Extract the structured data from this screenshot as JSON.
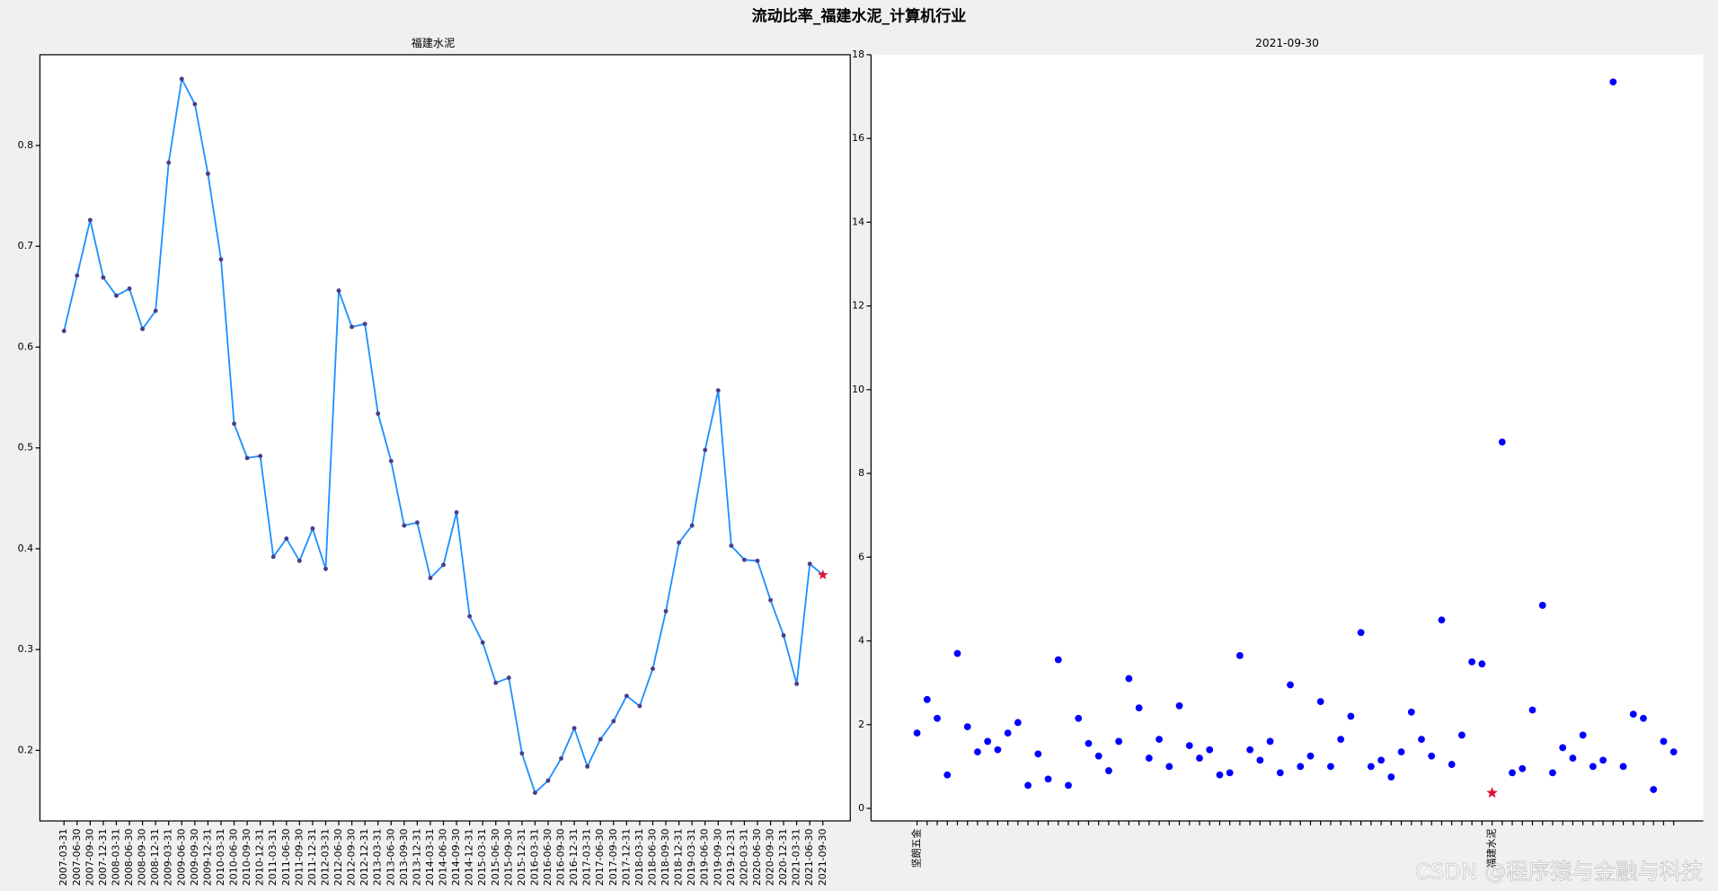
{
  "title": "流动比率_福建水泥_计算机行业",
  "watermark": "CSDN @程序猿与金融与科技",
  "chart_data": [
    {
      "type": "line",
      "title": "福建水泥",
      "categories": [
        "2007-03-31",
        "2007-06-30",
        "2007-09-30",
        "2007-12-31",
        "2008-03-31",
        "2008-06-30",
        "2008-09-30",
        "2008-12-31",
        "2009-03-31",
        "2009-06-30",
        "2009-09-30",
        "2009-12-31",
        "2010-03-31",
        "2010-06-30",
        "2010-09-30",
        "2010-12-31",
        "2011-03-31",
        "2011-06-30",
        "2011-09-30",
        "2011-12-31",
        "2012-03-31",
        "2012-06-30",
        "2012-09-30",
        "2012-12-31",
        "2013-03-31",
        "2013-06-30",
        "2013-09-30",
        "2013-12-31",
        "2014-03-31",
        "2014-06-30",
        "2014-09-30",
        "2014-12-31",
        "2015-03-31",
        "2015-06-30",
        "2015-09-30",
        "2015-12-31",
        "2016-03-31",
        "2016-06-30",
        "2016-09-30",
        "2016-12-31",
        "2017-03-31",
        "2017-06-30",
        "2017-09-30",
        "2017-12-31",
        "2018-03-31",
        "2018-06-30",
        "2018-09-30",
        "2018-12-31",
        "2019-03-31",
        "2019-06-30",
        "2019-09-30",
        "2019-12-31",
        "2020-03-31",
        "2020-06-30",
        "2020-09-30",
        "2020-12-31",
        "2021-03-31",
        "2021-06-30",
        "2021-09-30"
      ],
      "values": [
        0.616,
        0.671,
        0.726,
        0.669,
        0.651,
        0.658,
        0.618,
        0.636,
        0.783,
        0.866,
        0.841,
        0.772,
        0.687,
        0.524,
        0.49,
        0.492,
        0.392,
        0.41,
        0.388,
        0.42,
        0.38,
        0.656,
        0.62,
        0.623,
        0.534,
        0.487,
        0.423,
        0.426,
        0.371,
        0.384,
        0.436,
        0.333,
        0.307,
        0.267,
        0.272,
        0.197,
        0.158,
        0.17,
        0.192,
        0.222,
        0.184,
        0.211,
        0.229,
        0.254,
        0.244,
        0.281,
        0.338,
        0.406,
        0.423,
        0.498,
        0.557,
        0.403,
        0.389,
        0.388,
        0.349,
        0.314,
        0.266,
        0.385,
        0.374
      ],
      "color": "#1e90ff",
      "marker_color": "#483d8b",
      "highlight_color": "#dc143c",
      "ylim": [
        0.13,
        0.89
      ],
      "yticks": [
        0.2,
        0.3,
        0.4,
        0.5,
        0.6,
        0.7,
        0.8
      ]
    },
    {
      "type": "scatter",
      "title": "2021-09-30",
      "categories": [
        "坚朗五金",
        null,
        null,
        null,
        null,
        null,
        null,
        null,
        null,
        null,
        null,
        null,
        null,
        null,
        null,
        null,
        null,
        null,
        null,
        null,
        null,
        null,
        null,
        null,
        null,
        null,
        null,
        null,
        null,
        null,
        null,
        null,
        null,
        null,
        null,
        null,
        null,
        null,
        null,
        null,
        null,
        null,
        null,
        null,
        null,
        null,
        null,
        null,
        null,
        null,
        null,
        null,
        null,
        null,
        null,
        null,
        null,
        "福建水泥",
        null,
        null,
        null,
        null,
        null,
        null,
        null,
        null,
        null,
        null,
        null,
        null,
        null,
        null,
        null,
        null,
        null,
        null
      ],
      "values": [
        1.8,
        2.6,
        2.15,
        0.8,
        3.7,
        1.95,
        1.35,
        1.6,
        1.4,
        1.8,
        2.05,
        0.55,
        1.3,
        0.7,
        3.55,
        0.55,
        2.15,
        1.55,
        1.25,
        0.9,
        1.6,
        3.1,
        2.4,
        1.2,
        1.65,
        1.0,
        2.45,
        1.5,
        1.2,
        1.4,
        0.8,
        0.85,
        3.65,
        1.4,
        1.15,
        1.6,
        0.85,
        2.95,
        1.0,
        1.25,
        2.55,
        1.0,
        1.65,
        2.2,
        4.2,
        1.0,
        1.15,
        0.75,
        1.35,
        2.3,
        1.65,
        1.25,
        4.5,
        1.05,
        1.75,
        3.5,
        3.45,
        0.37,
        8.75,
        0.85,
        0.95,
        2.35,
        4.85,
        0.85,
        1.45,
        1.2,
        1.75,
        1.0,
        1.15,
        17.35,
        1.0,
        2.25,
        2.15,
        0.45,
        1.6,
        1.35
      ],
      "color": "#0000ff",
      "highlight_color": "#dc143c",
      "ylim": [
        -0.3,
        18
      ],
      "yticks": [
        0,
        2,
        4,
        6,
        8,
        10,
        12,
        14,
        16,
        18
      ]
    }
  ]
}
